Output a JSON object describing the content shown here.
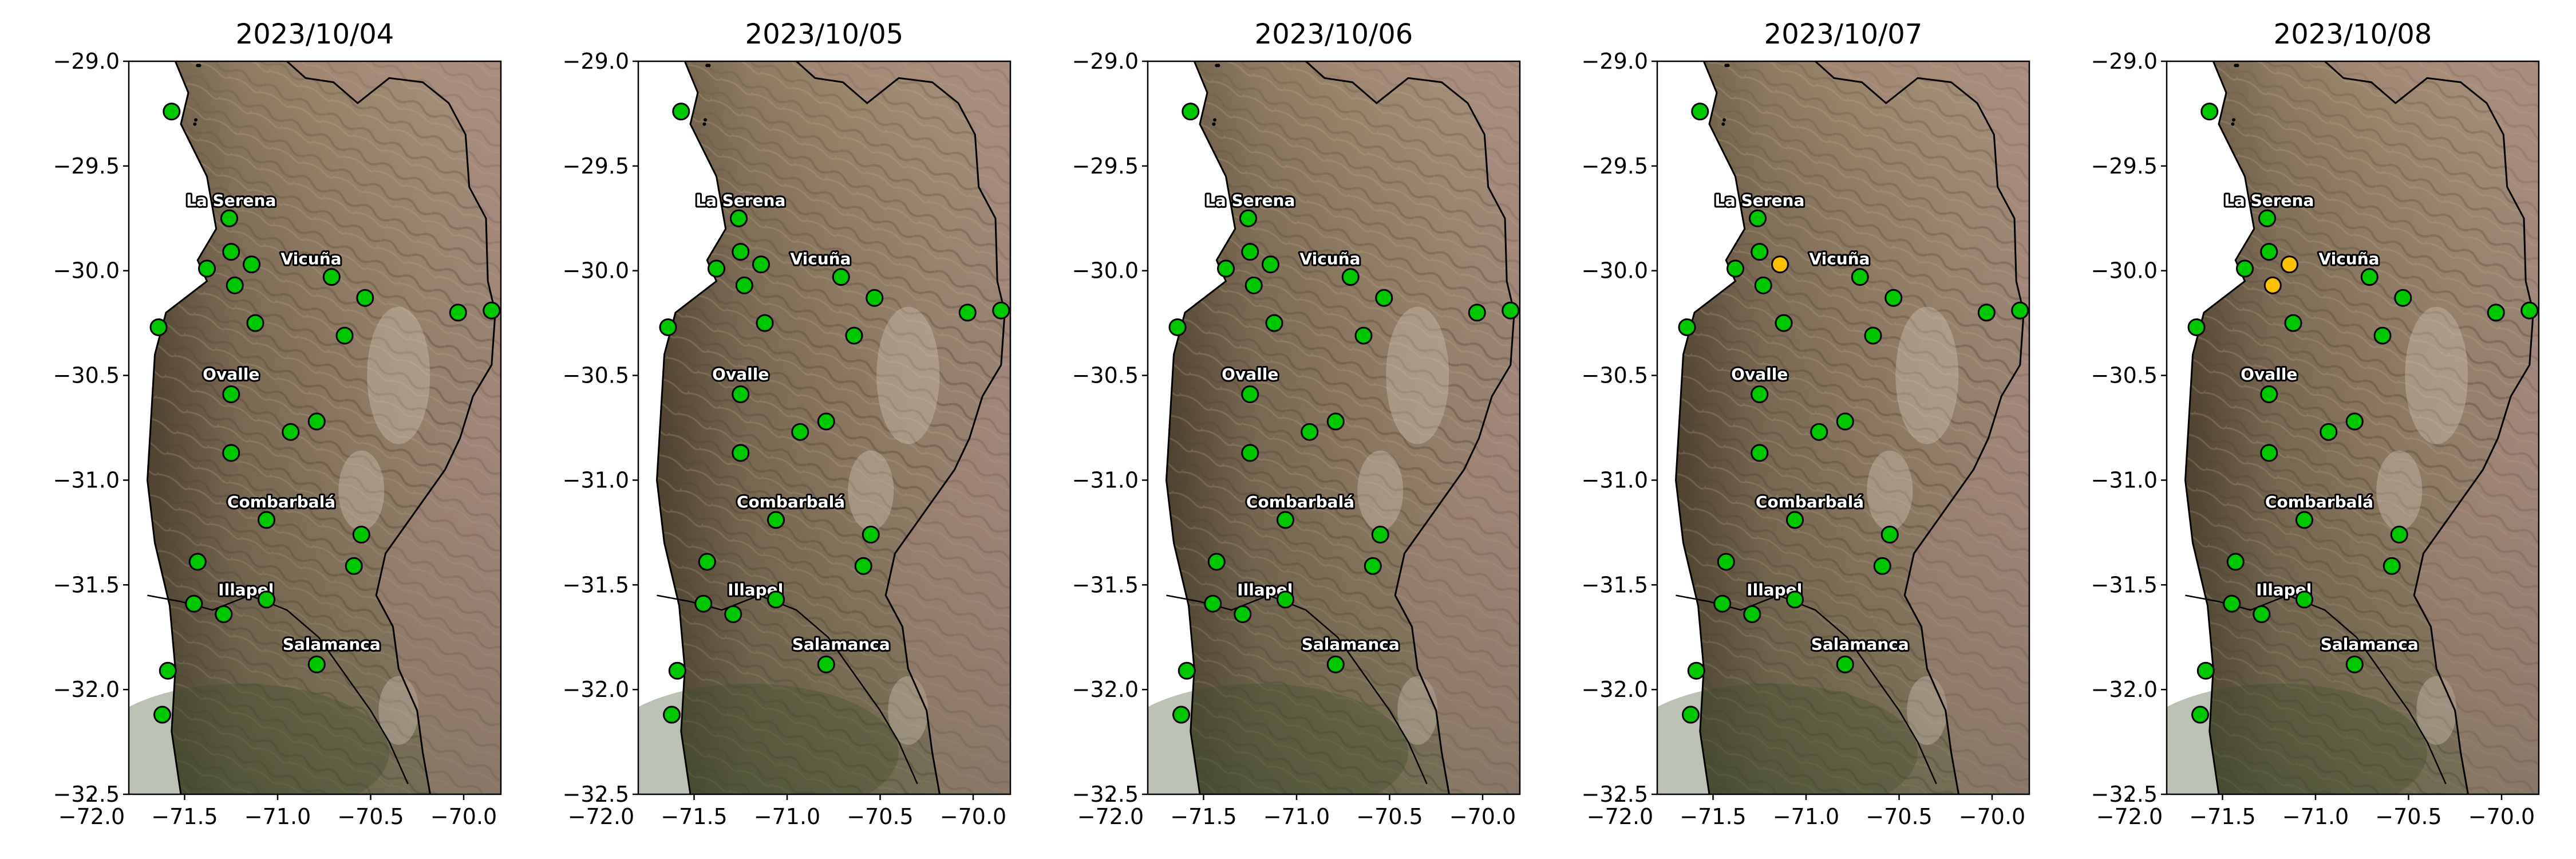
{
  "dates": [
    "2023/10/04",
    "2023/10/05",
    "2023/10/06",
    "2023/10/07",
    "2023/10/08"
  ],
  "axes": {
    "xlim": [
      -71.8,
      -69.8
    ],
    "ylim": [
      -32.5,
      -29.0
    ],
    "x_ticks": [
      -72.0,
      -71.5,
      -71.0,
      -70.5,
      -70.0
    ],
    "x_tick_labels": [
      "−72.0",
      "−71.5",
      "−71.0",
      "−70.5",
      "−70.0"
    ],
    "y_ticks": [
      -29.0,
      -29.5,
      -30.0,
      -30.5,
      -31.0,
      -31.5,
      -32.0,
      -32.5
    ],
    "y_tick_labels": [
      "−29.0",
      "−29.5",
      "−30.0",
      "−30.5",
      "−31.0",
      "−31.5",
      "−32.0",
      "−32.5"
    ]
  },
  "cities": [
    {
      "name": "La Serena",
      "lon": -71.25,
      "lat": -29.69
    },
    {
      "name": "Vicuña",
      "lon": -70.82,
      "lat": -29.97
    },
    {
      "name": "Ovalle",
      "lon": -71.25,
      "lat": -30.52
    },
    {
      "name": "Combarbalá",
      "lon": -70.98,
      "lat": -31.13
    },
    {
      "name": "Illapel",
      "lon": -71.17,
      "lat": -31.55
    },
    {
      "name": "Salamanca",
      "lon": -70.71,
      "lat": -31.81
    }
  ],
  "colors": {
    "ok": "#00c800",
    "alert": "#ffc000",
    "marker_edge": "#000000",
    "border_line": "#000000"
  },
  "chart_data": {
    "type": "scatter",
    "title": [
      "2023/10/04",
      "2023/10/05",
      "2023/10/06",
      "2023/10/07",
      "2023/10/08"
    ],
    "xlabel": "",
    "ylabel": "",
    "xlim": [
      -71.8,
      -69.8
    ],
    "ylim": [
      -32.5,
      -29.0
    ],
    "grid": false,
    "legend": "none",
    "stations": [
      {
        "lon": -71.57,
        "lat": -29.24
      },
      {
        "lon": -71.26,
        "lat": -29.75
      },
      {
        "lon": -71.25,
        "lat": -29.91
      },
      {
        "lon": -71.14,
        "lat": -29.97
      },
      {
        "lon": -71.38,
        "lat": -29.99
      },
      {
        "lon": -71.23,
        "lat": -30.07
      },
      {
        "lon": -70.71,
        "lat": -30.03
      },
      {
        "lon": -70.53,
        "lat": -30.13
      },
      {
        "lon": -70.03,
        "lat": -30.2
      },
      {
        "lon": -69.85,
        "lat": -30.19
      },
      {
        "lon": -71.12,
        "lat": -30.25
      },
      {
        "lon": -70.64,
        "lat": -30.31
      },
      {
        "lon": -71.64,
        "lat": -30.27
      },
      {
        "lon": -71.25,
        "lat": -30.59
      },
      {
        "lon": -71.25,
        "lat": -30.87
      },
      {
        "lon": -70.93,
        "lat": -30.77
      },
      {
        "lon": -70.79,
        "lat": -30.72
      },
      {
        "lon": -71.06,
        "lat": -31.19
      },
      {
        "lon": -70.55,
        "lat": -31.26
      },
      {
        "lon": -71.43,
        "lat": -31.39
      },
      {
        "lon": -70.59,
        "lat": -31.41
      },
      {
        "lon": -71.45,
        "lat": -31.59
      },
      {
        "lon": -71.06,
        "lat": -31.57
      },
      {
        "lon": -71.29,
        "lat": -31.64
      },
      {
        "lon": -70.79,
        "lat": -31.88
      },
      {
        "lon": -71.59,
        "lat": -31.91
      },
      {
        "lon": -71.62,
        "lat": -32.12
      }
    ],
    "status_by_date": [
      [],
      [],
      [],
      [
        3
      ],
      [
        3,
        5
      ]
    ],
    "status_legend": {
      "ok": "green",
      "alert": "yellow"
    }
  }
}
